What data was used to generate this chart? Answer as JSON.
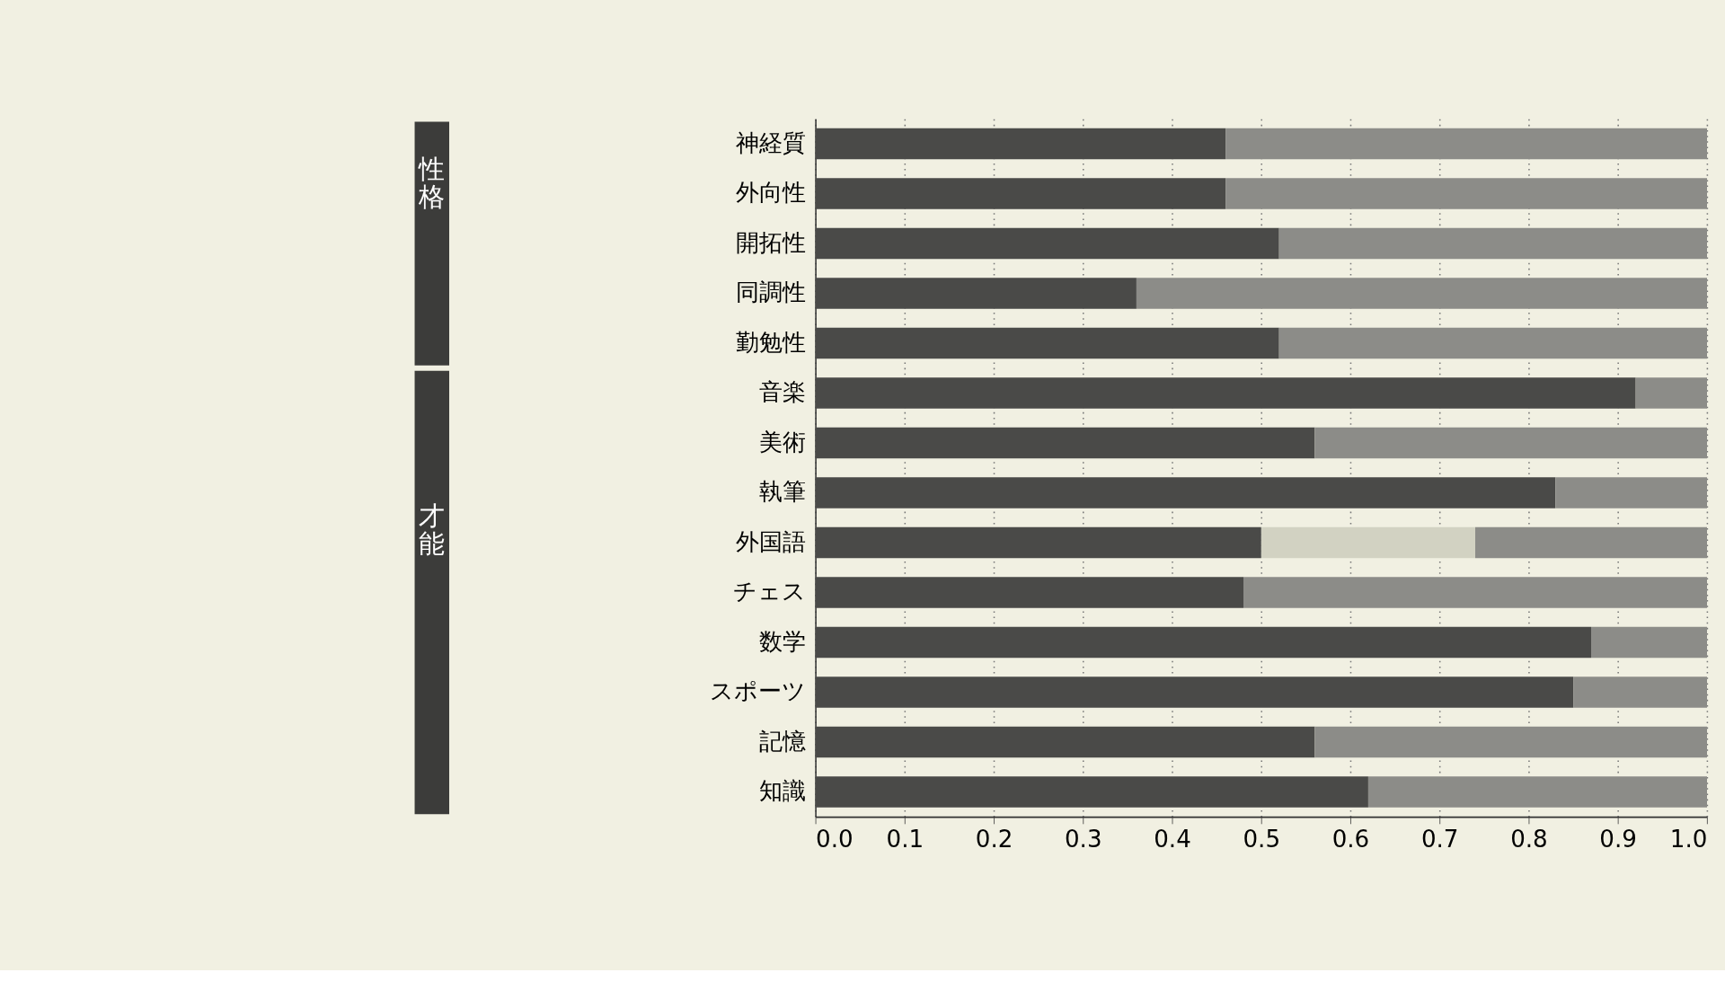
{
  "chart_data": {
    "type": "bar",
    "orientation": "horizontal",
    "stacked": true,
    "categories": [
      "神経質",
      "外向性",
      "開拓性",
      "同調性",
      "勤勉性",
      "音楽",
      "美術",
      "執筆",
      "外国語",
      "チェス",
      "数学",
      "スポーツ",
      "記憶",
      "知識"
    ],
    "series": [
      {
        "color": "#4a4a48",
        "values": [
          0.46,
          0.46,
          0.52,
          0.36,
          0.52,
          0.92,
          0.56,
          0.83,
          0.5,
          0.48,
          0.87,
          0.85,
          0.56,
          0.62
        ]
      },
      {
        "color": "#d2d2c2",
        "values": [
          null,
          null,
          null,
          null,
          null,
          null,
          null,
          null,
          0.24,
          null,
          null,
          null,
          null,
          null
        ]
      },
      {
        "color": "#8c8c88",
        "values": [
          0.54,
          0.54,
          0.48,
          0.64,
          0.48,
          0.08,
          0.44,
          0.17,
          0.26,
          0.52,
          0.13,
          0.15,
          0.44,
          0.38
        ]
      }
    ],
    "xlim": [
      0,
      1
    ],
    "xticks": [
      {
        "value": 0,
        "label": "0.0"
      },
      {
        "value": 0.1,
        "label": "0.1"
      },
      {
        "value": 0.2,
        "label": "0.2"
      },
      {
        "value": 0.3,
        "label": "0.3"
      },
      {
        "value": 0.4,
        "label": "0.4"
      },
      {
        "value": 0.5,
        "label": "0.5"
      },
      {
        "value": 0.6,
        "label": "0.6"
      },
      {
        "value": 0.7,
        "label": "0.7"
      },
      {
        "value": 0.8,
        "label": "0.8"
      },
      {
        "value": 0.9,
        "label": "0.9"
      },
      {
        "value": 1,
        "label": "1.0"
      }
    ],
    "grid": "x",
    "legend": false,
    "annotations": [
      "性格",
      "才能"
    ]
  }
}
